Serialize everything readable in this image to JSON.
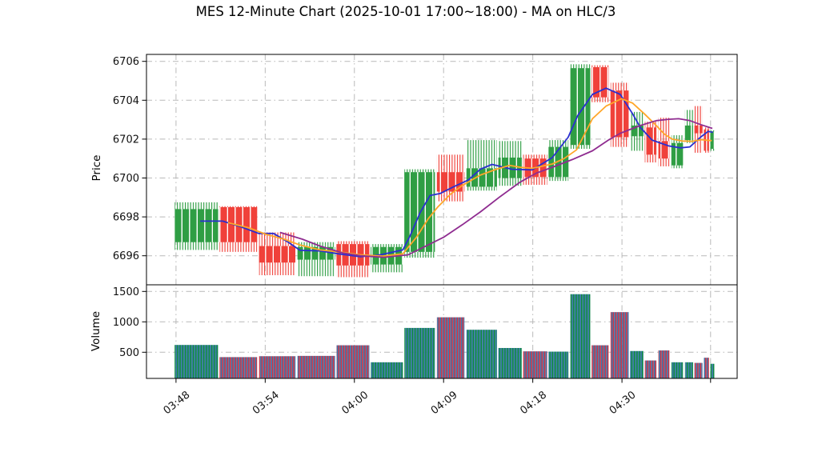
{
  "figure": {
    "title": "MES 12-Minute Chart (2025-10-01 17:00~18:00) - MA on HLC/3"
  },
  "chart_data": {
    "type": "candlestick_with_volume",
    "title": "MES 12-Minute Chart (2025-10-01 17:00~18:00) - MA on HLC/3",
    "grid": "dash-dot",
    "price_axis": {
      "label": "Price",
      "ticks": [
        6696,
        6698,
        6700,
        6702,
        6704,
        6706
      ],
      "range": [
        6694.5,
        6706.4
      ]
    },
    "volume_axis": {
      "label": "Volume",
      "ticks": [
        500,
        1000,
        1500
      ],
      "range": [
        70,
        1570
      ]
    },
    "x_axis": {
      "ticks": [
        {
          "pos": 0.05,
          "label": "03:48"
        },
        {
          "pos": 0.201,
          "label": "03:54"
        },
        {
          "pos": 0.352,
          "label": "04:00"
        },
        {
          "pos": 0.503,
          "label": "04:09"
        },
        {
          "pos": 0.654,
          "label": "04:18"
        },
        {
          "pos": 0.805,
          "label": "04:30"
        },
        {
          "pos": 0.955,
          "label": ""
        }
      ]
    },
    "bars": [
      {
        "pos": [
          0.047,
          0.122
        ],
        "open": 6696.7,
        "high": 6698.75,
        "low": 6696.3,
        "close": 6698.4,
        "volume": 620,
        "dir": "up",
        "vdir": "up"
      },
      {
        "pos": [
          0.123,
          0.188
        ],
        "open": 6698.5,
        "high": 6698.55,
        "low": 6696.2,
        "close": 6696.7,
        "volume": 420,
        "dir": "down",
        "vdir": "down"
      },
      {
        "pos": [
          0.19,
          0.253
        ],
        "open": 6696.5,
        "high": 6697.2,
        "low": 6695.0,
        "close": 6695.65,
        "volume": 435,
        "dir": "down",
        "vdir": "down"
      },
      {
        "pos": [
          0.255,
          0.32
        ],
        "open": 6695.8,
        "high": 6696.7,
        "low": 6694.95,
        "close": 6696.45,
        "volume": 440,
        "dir": "up",
        "vdir": "down"
      },
      {
        "pos": [
          0.321,
          0.378
        ],
        "open": 6696.6,
        "high": 6696.75,
        "low": 6694.9,
        "close": 6695.5,
        "volume": 615,
        "dir": "down",
        "vdir": "down"
      },
      {
        "pos": [
          0.379,
          0.435
        ],
        "open": 6695.55,
        "high": 6696.6,
        "low": 6695.15,
        "close": 6696.45,
        "volume": 335,
        "dir": "up",
        "vdir": "up"
      },
      {
        "pos": [
          0.436,
          0.489
        ],
        "open": 6696.2,
        "high": 6700.45,
        "low": 6695.9,
        "close": 6700.3,
        "volume": 900,
        "dir": "up",
        "vdir": "up"
      },
      {
        "pos": [
          0.491,
          0.539
        ],
        "open": 6700.3,
        "high": 6701.2,
        "low": 6698.8,
        "close": 6699.3,
        "volume": 1075,
        "dir": "down",
        "vdir": "down"
      },
      {
        "pos": [
          0.541,
          0.594
        ],
        "open": 6699.55,
        "high": 6701.95,
        "low": 6699.35,
        "close": 6700.5,
        "volume": 870,
        "dir": "up",
        "vdir": "up"
      },
      {
        "pos": [
          0.595,
          0.636
        ],
        "open": 6700.0,
        "high": 6701.9,
        "low": 6699.6,
        "close": 6701.05,
        "volume": 570,
        "dir": "up",
        "vdir": "up"
      },
      {
        "pos": [
          0.637,
          0.679
        ],
        "open": 6701.0,
        "high": 6701.2,
        "low": 6699.65,
        "close": 6700.05,
        "volume": 515,
        "dir": "down",
        "vdir": "down"
      },
      {
        "pos": [
          0.68,
          0.715
        ],
        "open": 6700.05,
        "high": 6701.95,
        "low": 6699.85,
        "close": 6701.6,
        "volume": 510,
        "dir": "up",
        "vdir": "up"
      },
      {
        "pos": [
          0.717,
          0.752
        ],
        "open": 6701.7,
        "high": 6705.85,
        "low": 6701.5,
        "close": 6705.65,
        "volume": 1455,
        "dir": "up",
        "vdir": "up"
      },
      {
        "pos": [
          0.753,
          0.783
        ],
        "open": 6705.7,
        "high": 6705.8,
        "low": 6703.9,
        "close": 6704.15,
        "volume": 615,
        "dir": "down",
        "vdir": "down"
      },
      {
        "pos": [
          0.785,
          0.817
        ],
        "open": 6704.5,
        "high": 6704.9,
        "low": 6701.6,
        "close": 6702.1,
        "volume": 1160,
        "dir": "down",
        "vdir": "down"
      },
      {
        "pos": [
          0.818,
          0.842
        ],
        "open": 6702.15,
        "high": 6703.4,
        "low": 6701.4,
        "close": 6702.7,
        "volume": 520,
        "dir": "up",
        "vdir": "up"
      },
      {
        "pos": [
          0.843,
          0.864
        ],
        "open": 6702.6,
        "high": 6702.9,
        "low": 6700.8,
        "close": 6701.2,
        "volume": 365,
        "dir": "down",
        "vdir": "down"
      },
      {
        "pos": [
          0.866,
          0.886
        ],
        "open": 6701.9,
        "high": 6703.1,
        "low": 6700.6,
        "close": 6701.0,
        "volume": 530,
        "dir": "down",
        "vdir": "down"
      },
      {
        "pos": [
          0.888,
          0.909
        ],
        "open": 6700.65,
        "high": 6702.2,
        "low": 6700.5,
        "close": 6701.8,
        "volume": 335,
        "dir": "up",
        "vdir": "up"
      },
      {
        "pos": [
          0.911,
          0.926
        ],
        "open": 6701.95,
        "high": 6703.5,
        "low": 6701.8,
        "close": 6702.7,
        "volume": 335,
        "dir": "up",
        "vdir": "up"
      },
      {
        "pos": [
          0.927,
          0.942
        ],
        "open": 6702.7,
        "high": 6703.7,
        "low": 6701.3,
        "close": 6702.3,
        "volume": 325,
        "dir": "down",
        "vdir": "down"
      },
      {
        "pos": [
          0.943,
          0.953
        ],
        "open": 6702.5,
        "high": 6702.6,
        "low": 6701.3,
        "close": 6701.4,
        "volume": 410,
        "dir": "down",
        "vdir": "down"
      },
      {
        "pos": [
          0.954,
          0.962
        ],
        "open": 6701.5,
        "high": 6702.45,
        "low": 6701.4,
        "close": 6702.4,
        "volume": 310,
        "dir": "up",
        "vdir": "up"
      }
    ],
    "moving_averages": [
      {
        "name": "MA-fast-blue",
        "color": "#2a2fd0",
        "points": [
          [
            0.091,
            6697.78
          ],
          [
            0.129,
            6697.78
          ],
          [
            0.159,
            6697.5
          ],
          [
            0.19,
            6697.15
          ],
          [
            0.215,
            6697.15
          ],
          [
            0.24,
            6696.7
          ],
          [
            0.26,
            6696.28
          ],
          [
            0.294,
            6696.25
          ],
          [
            0.325,
            6696.1
          ],
          [
            0.362,
            6695.95
          ],
          [
            0.396,
            6696.05
          ],
          [
            0.434,
            6696.3
          ],
          [
            0.446,
            6697.0
          ],
          [
            0.463,
            6698.2
          ],
          [
            0.48,
            6699.1
          ],
          [
            0.497,
            6699.2
          ],
          [
            0.52,
            6699.55
          ],
          [
            0.545,
            6699.9
          ],
          [
            0.565,
            6700.45
          ],
          [
            0.585,
            6700.7
          ],
          [
            0.619,
            6700.45
          ],
          [
            0.653,
            6700.42
          ],
          [
            0.687,
            6701.05
          ],
          [
            0.714,
            6702.1
          ],
          [
            0.73,
            6703.2
          ],
          [
            0.755,
            6704.3
          ],
          [
            0.778,
            6704.62
          ],
          [
            0.802,
            6704.3
          ],
          [
            0.823,
            6703.3
          ],
          [
            0.836,
            6702.6
          ],
          [
            0.856,
            6701.95
          ],
          [
            0.884,
            6701.65
          ],
          [
            0.904,
            6701.55
          ],
          [
            0.92,
            6701.6
          ],
          [
            0.938,
            6702.1
          ],
          [
            0.951,
            6702.4
          ],
          [
            0.959,
            6702.35
          ]
        ]
      },
      {
        "name": "MA-medium-orange",
        "color": "#ffa629",
        "points": [
          [
            0.138,
            6697.7
          ],
          [
            0.172,
            6697.45
          ],
          [
            0.203,
            6697.1
          ],
          [
            0.233,
            6696.85
          ],
          [
            0.26,
            6696.55
          ],
          [
            0.294,
            6696.3
          ],
          [
            0.325,
            6696.2
          ],
          [
            0.362,
            6696.05
          ],
          [
            0.4,
            6695.98
          ],
          [
            0.434,
            6696.1
          ],
          [
            0.457,
            6696.95
          ],
          [
            0.477,
            6697.9
          ],
          [
            0.493,
            6698.5
          ],
          [
            0.514,
            6699.15
          ],
          [
            0.534,
            6699.6
          ],
          [
            0.565,
            6700.15
          ],
          [
            0.592,
            6700.45
          ],
          [
            0.615,
            6700.65
          ],
          [
            0.633,
            6700.55
          ],
          [
            0.653,
            6700.5
          ],
          [
            0.687,
            6700.72
          ],
          [
            0.707,
            6701.0
          ],
          [
            0.728,
            6701.45
          ],
          [
            0.755,
            6703.05
          ],
          [
            0.778,
            6703.7
          ],
          [
            0.804,
            6704.08
          ],
          [
            0.823,
            6703.85
          ],
          [
            0.843,
            6703.3
          ],
          [
            0.863,
            6702.7
          ],
          [
            0.877,
            6702.25
          ],
          [
            0.89,
            6702.0
          ],
          [
            0.907,
            6701.9
          ],
          [
            0.924,
            6701.89
          ],
          [
            0.939,
            6701.97
          ],
          [
            0.957,
            6701.92
          ]
        ]
      },
      {
        "name": "MA-slow-purple",
        "color": "#8f2c90",
        "points": [
          [
            0.226,
            6697.2
          ],
          [
            0.264,
            6696.85
          ],
          [
            0.294,
            6696.5
          ],
          [
            0.332,
            6696.15
          ],
          [
            0.362,
            6696.0
          ],
          [
            0.402,
            6695.92
          ],
          [
            0.443,
            6696.05
          ],
          [
            0.473,
            6696.5
          ],
          [
            0.503,
            6696.95
          ],
          [
            0.535,
            6697.6
          ],
          [
            0.565,
            6698.25
          ],
          [
            0.599,
            6699.05
          ],
          [
            0.633,
            6699.8
          ],
          [
            0.66,
            6700.25
          ],
          [
            0.687,
            6700.55
          ],
          [
            0.721,
            6700.95
          ],
          [
            0.755,
            6701.4
          ],
          [
            0.782,
            6701.95
          ],
          [
            0.802,
            6702.3
          ],
          [
            0.836,
            6702.7
          ],
          [
            0.863,
            6702.95
          ],
          [
            0.884,
            6703.02
          ],
          [
            0.901,
            6703.05
          ],
          [
            0.92,
            6702.95
          ],
          [
            0.938,
            6702.75
          ],
          [
            0.958,
            6702.55
          ]
        ]
      }
    ],
    "colors": {
      "up": "#2f9e44",
      "down": "#f0413a",
      "volume_up": "#0d8a3e",
      "volume_down": "#cf3545",
      "volume_alt": "#3c77ad",
      "grid": "#b9b9b9",
      "axis": "#000000",
      "text": "#111111"
    }
  }
}
